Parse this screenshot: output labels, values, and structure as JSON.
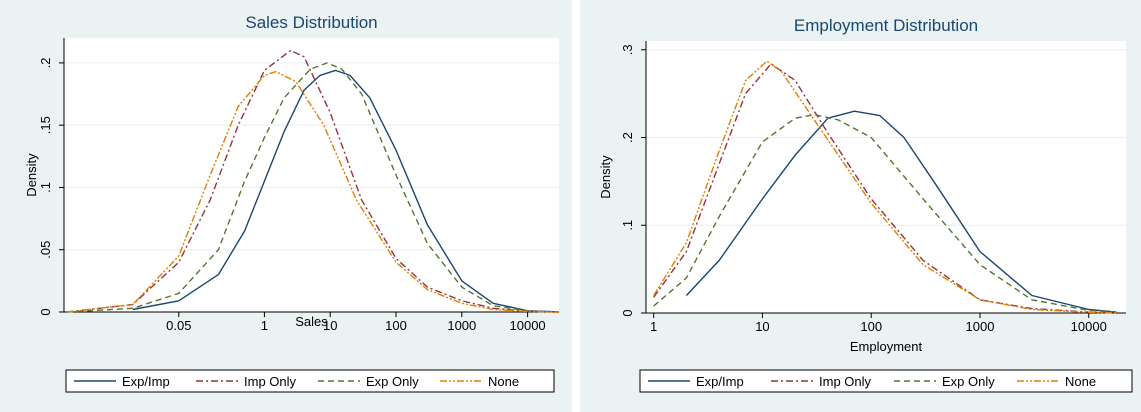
{
  "chart_data": [
    {
      "type": "line",
      "title": "Sales Distribution",
      "xlabel": "Sales",
      "ylabel": "Density",
      "xscale": "log",
      "xlim": [
        0.0009,
        30000
      ],
      "ylim": [
        0,
        0.22
      ],
      "xticks": [
        {
          "value": 0.05,
          "label": "0.05"
        },
        {
          "value": 1,
          "label": "1"
        },
        {
          "value": 10,
          "label": "10"
        },
        {
          "value": 100,
          "label": "100"
        },
        {
          "value": 1000,
          "label": "1000"
        },
        {
          "value": 10000,
          "label": "10000"
        }
      ],
      "yticks": [
        {
          "value": 0,
          "label": "0"
        },
        {
          "value": 0.05,
          "label": ".05"
        },
        {
          "value": 0.1,
          "label": ".1"
        },
        {
          "value": 0.15,
          "label": ".15"
        },
        {
          "value": 0.2,
          "label": ".2"
        }
      ],
      "grid": true,
      "legend_position": "bottom",
      "series": [
        {
          "name": "Exp/Imp",
          "color": "#1a476f",
          "dash": "solid",
          "points": [
            [
              0.01,
              0.002
            ],
            [
              0.05,
              0.009
            ],
            [
              0.2,
              0.03
            ],
            [
              0.5,
              0.065
            ],
            [
              1,
              0.105
            ],
            [
              2,
              0.145
            ],
            [
              4,
              0.178
            ],
            [
              7,
              0.19
            ],
            [
              12,
              0.194
            ],
            [
              20,
              0.19
            ],
            [
              40,
              0.172
            ],
            [
              100,
              0.13
            ],
            [
              300,
              0.07
            ],
            [
              1000,
              0.025
            ],
            [
              3000,
              0.007
            ],
            [
              10000,
              0.001
            ],
            [
              30000,
              0.0002
            ]
          ]
        },
        {
          "name": "Imp Only",
          "color": "#90353b",
          "dash": "dashdot",
          "points": [
            [
              0.001,
              0
            ],
            [
              0.01,
              0.006
            ],
            [
              0.05,
              0.04
            ],
            [
              0.15,
              0.09
            ],
            [
              0.4,
              0.15
            ],
            [
              1,
              0.194
            ],
            [
              2.5,
              0.21
            ],
            [
              4,
              0.205
            ],
            [
              10,
              0.16
            ],
            [
              30,
              0.09
            ],
            [
              100,
              0.043
            ],
            [
              300,
              0.02
            ],
            [
              1000,
              0.009
            ],
            [
              3000,
              0.003
            ],
            [
              10000,
              0.0005
            ],
            [
              30000,
              0
            ]
          ]
        },
        {
          "name": "Exp Only",
          "color": "#55752f",
          "dash": "dashed",
          "points": [
            [
              0.001,
              0
            ],
            [
              0.01,
              0.003
            ],
            [
              0.05,
              0.015
            ],
            [
              0.2,
              0.05
            ],
            [
              0.5,
              0.105
            ],
            [
              1,
              0.14
            ],
            [
              2,
              0.172
            ],
            [
              5,
              0.195
            ],
            [
              9,
              0.2
            ],
            [
              15,
              0.195
            ],
            [
              30,
              0.175
            ],
            [
              100,
              0.11
            ],
            [
              300,
              0.055
            ],
            [
              1000,
              0.02
            ],
            [
              3000,
              0.005
            ],
            [
              10000,
              0.001
            ],
            [
              30000,
              0
            ]
          ]
        },
        {
          "name": "None",
          "color": "#e37e00",
          "dash": "dashdotdot",
          "points": [
            [
              0.001,
              0
            ],
            [
              0.01,
              0.006
            ],
            [
              0.05,
              0.045
            ],
            [
              0.15,
              0.11
            ],
            [
              0.4,
              0.165
            ],
            [
              1,
              0.19
            ],
            [
              1.5,
              0.193
            ],
            [
              3,
              0.185
            ],
            [
              8,
              0.15
            ],
            [
              25,
              0.09
            ],
            [
              100,
              0.04
            ],
            [
              300,
              0.018
            ],
            [
              1000,
              0.007
            ],
            [
              3000,
              0.002
            ],
            [
              10000,
              0.0005
            ],
            [
              30000,
              0
            ]
          ]
        }
      ]
    },
    {
      "type": "line",
      "title": "Employment Distribution",
      "xlabel": "Employment",
      "ylabel": "Density",
      "xscale": "log",
      "xlim": [
        0.85,
        22000
      ],
      "ylim": [
        0,
        0.31
      ],
      "xticks": [
        {
          "value": 1,
          "label": "1"
        },
        {
          "value": 10,
          "label": "10"
        },
        {
          "value": 100,
          "label": "100"
        },
        {
          "value": 1000,
          "label": "1000"
        },
        {
          "value": 10000,
          "label": "10000"
        }
      ],
      "yticks": [
        {
          "value": 0,
          "label": "0"
        },
        {
          "value": 0.1,
          "label": ".1"
        },
        {
          "value": 0.2,
          "label": ".2"
        },
        {
          "value": 0.3,
          "label": ".3"
        }
      ],
      "grid": true,
      "legend_position": "bottom",
      "series": [
        {
          "name": "Exp/Imp",
          "color": "#1a476f",
          "dash": "solid",
          "points": [
            [
              2,
              0.02
            ],
            [
              4,
              0.06
            ],
            [
              10,
              0.13
            ],
            [
              20,
              0.18
            ],
            [
              40,
              0.222
            ],
            [
              70,
              0.23
            ],
            [
              120,
              0.225
            ],
            [
              200,
              0.2
            ],
            [
              400,
              0.145
            ],
            [
              1000,
              0.07
            ],
            [
              3000,
              0.02
            ],
            [
              10000,
              0.004
            ],
            [
              18000,
              0.001
            ]
          ]
        },
        {
          "name": "Imp Only",
          "color": "#90353b",
          "dash": "dashdot",
          "points": [
            [
              1,
              0.018
            ],
            [
              2,
              0.07
            ],
            [
              4,
              0.17
            ],
            [
              7,
              0.25
            ],
            [
              12,
              0.284
            ],
            [
              20,
              0.265
            ],
            [
              40,
              0.205
            ],
            [
              100,
              0.13
            ],
            [
              300,
              0.06
            ],
            [
              1000,
              0.015
            ],
            [
              3000,
              0.005
            ],
            [
              10000,
              0.001
            ],
            [
              18000,
              0
            ]
          ]
        },
        {
          "name": "Exp Only",
          "color": "#55752f",
          "dash": "dashed",
          "points": [
            [
              1,
              0.008
            ],
            [
              2,
              0.04
            ],
            [
              4,
              0.11
            ],
            [
              10,
              0.195
            ],
            [
              20,
              0.222
            ],
            [
              30,
              0.226
            ],
            [
              50,
              0.22
            ],
            [
              100,
              0.2
            ],
            [
              300,
              0.13
            ],
            [
              1000,
              0.055
            ],
            [
              3000,
              0.015
            ],
            [
              10000,
              0.003
            ],
            [
              18000,
              0.001
            ]
          ]
        },
        {
          "name": "None",
          "color": "#e37e00",
          "dash": "dashdotdot",
          "points": [
            [
              1,
              0.02
            ],
            [
              2,
              0.08
            ],
            [
              4,
              0.185
            ],
            [
              7,
              0.265
            ],
            [
              11,
              0.287
            ],
            [
              15,
              0.275
            ],
            [
              30,
              0.22
            ],
            [
              100,
              0.125
            ],
            [
              300,
              0.055
            ],
            [
              1000,
              0.015
            ],
            [
              3000,
              0.004
            ],
            [
              10000,
              0.0008
            ],
            [
              18000,
              0
            ]
          ]
        }
      ]
    }
  ]
}
